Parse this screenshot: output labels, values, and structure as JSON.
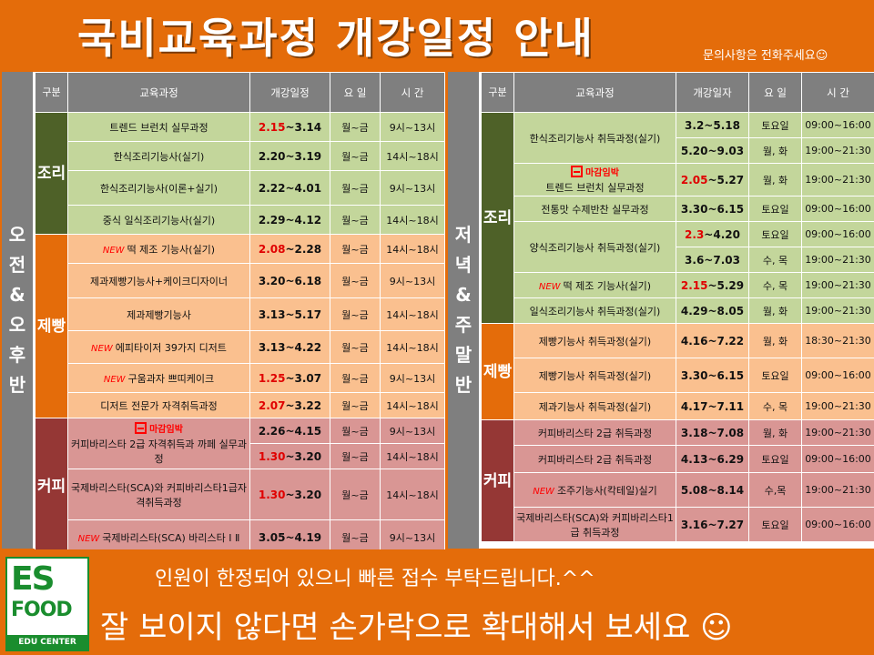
{
  "header": {
    "title": "국비교육과정  개강일정 안내",
    "contact": "문의사항은 전화주세요☺"
  },
  "left": {
    "side_label": [
      "오",
      "전",
      "&",
      "오",
      "후",
      "반"
    ],
    "columns": [
      "구분",
      "교육과정",
      "개강일정",
      "요 일",
      "시 간"
    ],
    "categories": {
      "jori": "조리",
      "jeppang": "제빵",
      "keopi": "커피"
    },
    "rows": [
      {
        "course": "트렌드 브런치 실무과정",
        "start": "2.15",
        "end": "~3.14",
        "start_red": true,
        "day": "월~금",
        "time": "9시~13시"
      },
      {
        "course": "한식조리기능사(실기)",
        "start": "2.20",
        "end": "~3.19",
        "start_red": false,
        "day": "월~금",
        "time": "14시~18시"
      },
      {
        "course": "한식조리기능사(이론+실기)",
        "start": "2.22",
        "end": "~4.01",
        "start_red": false,
        "day": "월~금",
        "time": "9시~13시"
      },
      {
        "course": "중식 일식조리기능사(실기)",
        "start": "2.29",
        "end": "~4.12",
        "start_red": false,
        "day": "월~금",
        "time": "14시~18시"
      },
      {
        "new": "NEW",
        "course": "떡 제조 기능사(실기)",
        "start": "2.08",
        "end": "~2.28",
        "start_red": true,
        "day": "월~금",
        "time": "14시~18시"
      },
      {
        "course": "제과제빵기능사+케이크디자이너",
        "start": "3.20",
        "end": "~6.18",
        "start_red": false,
        "day": "월~금",
        "time": "9시~13시"
      },
      {
        "course": "제과제빵기능사",
        "start": "3.13",
        "end": "~5.17",
        "start_red": false,
        "day": "월~금",
        "time": "14시~18시"
      },
      {
        "new": "NEW",
        "course": "에피타이저 39가지 디저트",
        "start": "3.13",
        "end": "~4.22",
        "start_red": false,
        "day": "월~금",
        "time": "14시~18시"
      },
      {
        "new": "NEW",
        "course": "구움과자 쁘띠케이크",
        "start": "1.25",
        "end": "~3.07",
        "start_red": true,
        "day": "월~금",
        "time": "9시~13시"
      },
      {
        "course": "디저트 전문가 자격취득과정",
        "start": "2.07",
        "end": "~3.22",
        "start_red": true,
        "day": "월~금",
        "time": "14시~18시"
      },
      {
        "closed": "마감임박",
        "course": "커피바리스타 2급 자격취득과 까페 실무과정",
        "start": "2.26",
        "end": "~4.15",
        "start_red": false,
        "day": "월~금",
        "time": "9시~13시"
      },
      {
        "start": "1.30",
        "end": "~3.20",
        "start_red": true,
        "day": "월~금",
        "time": "14시~18시"
      },
      {
        "course": "국제바리스타(SCA)와 커피바리스타1급자격취득과정",
        "start": "1.30",
        "end": "~3.20",
        "start_red": true,
        "day": "월~금",
        "time": "14시~18시"
      },
      {
        "new": "NEW",
        "course": "국제바리스타(SCA) 바리스타 Ⅰ Ⅱ",
        "start": "3.05",
        "end": "~4.19",
        "start_red": false,
        "day": "월~금",
        "time": "9시~13시"
      }
    ]
  },
  "right": {
    "side_label": [
      "저",
      "녁",
      "&",
      "주",
      "말",
      "반"
    ],
    "columns": [
      "구분",
      "교육과정",
      "개강일자",
      "요 일",
      "시 간"
    ],
    "categories": {
      "jori": "조리",
      "jeppang": "제빵",
      "keopi": "커피"
    },
    "rows": [
      {
        "course": "한식조리기능사 취득과정(실기)",
        "start": "3.2",
        "end": "~5.18",
        "start_red": false,
        "day": "토요일",
        "time": "09:00~16:00"
      },
      {
        "start": "5.20",
        "end": "~9.03",
        "start_red": false,
        "day": "월, 화",
        "time": "19:00~21:30"
      },
      {
        "closed": "마감임박",
        "course": "트렌드 브런치 실무과정",
        "start": "2.05",
        "end": "~5.27",
        "start_red": true,
        "day": "월, 화",
        "time": "19:00~21:30"
      },
      {
        "course": "전통맛 수제반찬 실무과정",
        "start": "3.30",
        "end": "~6.15",
        "start_red": false,
        "day": "토요일",
        "time": "09:00~16:00"
      },
      {
        "course": "양식조리기능사 취득과정(실기)",
        "start": "2.3",
        "end": "~4.20",
        "start_red": true,
        "day": "토요일",
        "time": "09:00~16:00"
      },
      {
        "start": "3.6",
        "end": "~7.03",
        "start_red": false,
        "day": "수, 목",
        "time": "19:00~21:30"
      },
      {
        "new": "NEW",
        "course": "떡 제조 기능사(실기)",
        "start": "2.15",
        "end": "~5.29",
        "start_red": true,
        "day": "수, 목",
        "time": "19:00~21:30"
      },
      {
        "course": "일식조리기능사 취득과정(실기)",
        "start": "4.29",
        "end": "~8.05",
        "start_red": false,
        "day": "월, 화",
        "time": "19:00~21:30"
      },
      {
        "course": "제빵기능사 취득과정(실기)",
        "start": "4.16",
        "end": "~7.22",
        "start_red": false,
        "day": "월, 화",
        "time": "18:30~21:30"
      },
      {
        "course": "제빵기능사 취득과정(실기)",
        "start": "3.30",
        "end": "~6.15",
        "start_red": false,
        "day": "토요일",
        "time": "09:00~16:00"
      },
      {
        "course": "제과기능사 취득과정(실기)",
        "start": "4.17",
        "end": "~7.11",
        "start_red": false,
        "day": "수, 목",
        "time": "19:00~21:30"
      },
      {
        "course": "커피바리스타 2급 취득과정",
        "start": "3.18",
        "end": "~7.08",
        "start_red": false,
        "day": "월, 화",
        "time": "19:00~21:30"
      },
      {
        "course": "커피바리스타 2급 취득과정",
        "start": "4.13",
        "end": "~6.29",
        "start_red": false,
        "day": "토요일",
        "time": "09:00~16:00"
      },
      {
        "new": "NEW",
        "course": "조주기능사(칵테일)실기",
        "start": "5.08",
        "end": "~8.14",
        "start_red": false,
        "day": "수,목",
        "time": "19:00~21:30"
      },
      {
        "course": "국제바리스타(SCA)와 커피바리스타1급 취득과정",
        "start": "3.16",
        "end": "~7.27",
        "start_red": false,
        "day": "토요일",
        "time": "09:00~16:00"
      }
    ]
  },
  "footer": {
    "logo_es": "ES",
    "logo_food": "FOOD",
    "logo_edu": "EDU CENTER",
    "notice1": "인원이 한정되어 있으니 빠른 접수 부탁드립니다.^^",
    "notice2": "잘 보이지 않다면 손가락으로 확대해서 보세요 ☺"
  }
}
